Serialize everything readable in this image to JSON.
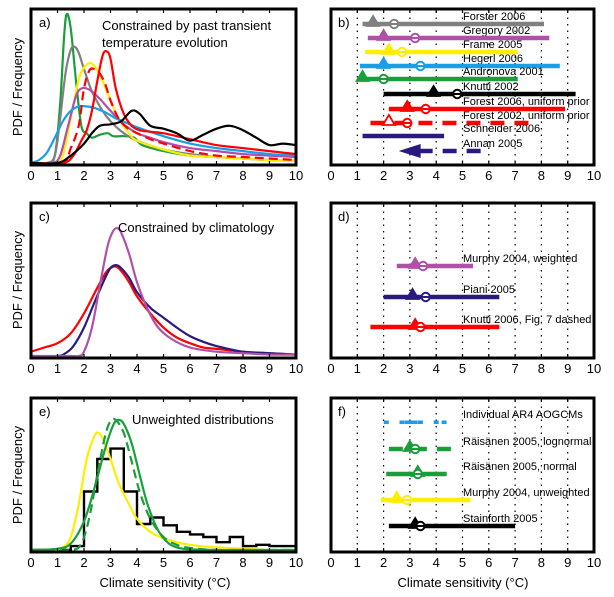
{
  "chart_data": [
    {
      "panel": "a",
      "type": "line",
      "label": "a)",
      "title": "Constrained by past transient temperature evolution",
      "title_lines": [
        "Constrained by past transient",
        "temperature evolution"
      ],
      "xlabel": "",
      "ylabel": "PDF / Frequency",
      "xlim": [
        0,
        10
      ],
      "ylim": [
        0,
        1
      ],
      "xticks": [
        "0",
        "1",
        "2",
        "3",
        "4",
        "5",
        "6",
        "7",
        "8",
        "9",
        "10"
      ],
      "series": [
        {
          "name": "Andronova 2001",
          "color": "#1a9e3c",
          "dash": false,
          "x": [
            0.6,
            0.9,
            1.1,
            1.25,
            1.35,
            1.5,
            1.7,
            1.9,
            2.1,
            2.3,
            2.6,
            2.9,
            3.1,
            3.5,
            3.9,
            4.2,
            5,
            6,
            7,
            8,
            9,
            10
          ],
          "y": [
            0,
            0.05,
            0.4,
            0.85,
            1.0,
            0.9,
            0.55,
            0.25,
            0.2,
            0.17,
            0.19,
            0.2,
            0.18,
            0.18,
            0.17,
            0.12,
            0.08,
            0.05,
            0.04,
            0.03,
            0.02,
            0.02
          ]
        },
        {
          "name": "Forster 2006",
          "color": "#808080",
          "dash": false,
          "x": [
            0.6,
            0.9,
            1.1,
            1.3,
            1.5,
            1.65,
            1.8,
            2.0,
            2.3,
            2.7,
            3.0,
            3.5,
            4,
            5,
            6,
            7,
            8,
            9,
            10
          ],
          "y": [
            0,
            0.05,
            0.3,
            0.6,
            0.76,
            0.78,
            0.74,
            0.63,
            0.48,
            0.35,
            0.28,
            0.2,
            0.15,
            0.09,
            0.06,
            0.04,
            0.03,
            0.02,
            0.02
          ]
        },
        {
          "name": "Frame 2005",
          "color": "#ffee00",
          "dash": false,
          "x": [
            0.9,
            1.2,
            1.5,
            1.8,
            2.0,
            2.2,
            2.4,
            2.7,
            3.0,
            3.3,
            3.7,
            4,
            5,
            6,
            7,
            8,
            9,
            10
          ],
          "y": [
            0,
            0.05,
            0.3,
            0.56,
            0.64,
            0.67,
            0.65,
            0.55,
            0.42,
            0.3,
            0.2,
            0.15,
            0.09,
            0.05,
            0.04,
            0.03,
            0.02,
            0.02
          ]
        },
        {
          "name": "Gregory 2002",
          "color": "#b050a8",
          "dash": false,
          "x": [
            0.8,
            1.1,
            1.4,
            1.7,
            1.9,
            2.1,
            2.3,
            2.6,
            3.0,
            3.5,
            4,
            4.5,
            5,
            6,
            7,
            8,
            9,
            10
          ],
          "y": [
            0,
            0.05,
            0.25,
            0.45,
            0.5,
            0.5,
            0.48,
            0.43,
            0.35,
            0.26,
            0.2,
            0.17,
            0.14,
            0.1,
            0.08,
            0.06,
            0.05,
            0.04
          ]
        },
        {
          "name": "Hegerl 2006",
          "color": "#1a9ee8",
          "dash": false,
          "x": [
            0,
            0.3,
            0.6,
            0.9,
            1.2,
            1.5,
            1.8,
            2.1,
            2.4,
            2.8,
            3.2,
            3.6,
            4,
            5,
            6,
            7,
            8,
            9,
            10
          ],
          "y": [
            0,
            0.02,
            0.07,
            0.17,
            0.28,
            0.35,
            0.38,
            0.38,
            0.37,
            0.34,
            0.3,
            0.27,
            0.24,
            0.18,
            0.13,
            0.1,
            0.08,
            0.06,
            0.05
          ]
        },
        {
          "name": "Forest 2006, uniform prior",
          "color": "#ff0000",
          "dash": false,
          "x": [
            1.2,
            1.6,
            1.9,
            2.1,
            2.3,
            2.5,
            2.7,
            2.85,
            3.0,
            3.2,
            3.5,
            3.8,
            4.1,
            4.5,
            5,
            5.5,
            6,
            7,
            8,
            9,
            9.5,
            10
          ],
          "y": [
            0,
            0.05,
            0.15,
            0.22,
            0.35,
            0.55,
            0.72,
            0.75,
            0.7,
            0.5,
            0.33,
            0.25,
            0.22,
            0.21,
            0.2,
            0.18,
            0.16,
            0.12,
            0.1,
            0.08,
            0.07,
            0.06
          ]
        },
        {
          "name": "Forest 2002, uniform prior",
          "color": "#ff0000",
          "dash": true,
          "x": [
            1.2,
            1.5,
            1.8,
            2.0,
            2.2,
            2.4,
            2.6,
            2.8,
            3.0,
            3.3,
            3.6,
            4,
            4.5,
            5,
            6,
            7,
            8,
            9,
            10
          ],
          "y": [
            0,
            0.1,
            0.25,
            0.5,
            0.62,
            0.63,
            0.6,
            0.53,
            0.42,
            0.3,
            0.24,
            0.2,
            0.16,
            0.13,
            0.08,
            0.05,
            0.04,
            0.03,
            0.02
          ]
        },
        {
          "name": "Knutti 2002",
          "color": "#000000",
          "dash": false,
          "x": [
            1.0,
            1.5,
            2.0,
            2.3,
            2.6,
            3.0,
            3.4,
            3.8,
            4.1,
            4.5,
            5,
            5.5,
            6,
            6.5,
            7,
            7.5,
            8,
            8.5,
            9,
            9.5,
            10
          ],
          "y": [
            0,
            0.05,
            0.13,
            0.2,
            0.25,
            0.26,
            0.28,
            0.35,
            0.33,
            0.25,
            0.23,
            0.2,
            0.15,
            0.19,
            0.23,
            0.25,
            0.22,
            0.17,
            0.12,
            0.13,
            0.12
          ]
        }
      ]
    },
    {
      "panel": "b",
      "type": "range",
      "label": "b)",
      "xlim": [
        0,
        10
      ],
      "xticks": [
        "0",
        "1",
        "2",
        "3",
        "4",
        "5",
        "6",
        "7",
        "8",
        "9",
        "10"
      ],
      "grid": "vertical-dotted",
      "rows": [
        {
          "name": "Forster 2006",
          "color": "#808080",
          "range": [
            1.2,
            8.1
          ],
          "mode": 1.6,
          "median": 2.4,
          "dash": false
        },
        {
          "name": "Gregory 2002",
          "color": "#b050a8",
          "range": [
            1.4,
            8.3
          ],
          "mode": 2.0,
          "median": 3.2,
          "dash": false
        },
        {
          "name": "Frame 2005",
          "color": "#ffee00",
          "range": [
            1.3,
            7.1
          ],
          "mode": 2.2,
          "median": 2.7,
          "dash": false
        },
        {
          "name": "Hegerl 2006",
          "color": "#1a9ee8",
          "range": [
            1.1,
            8.7
          ],
          "mode": 2.0,
          "median": 3.4,
          "dash": false
        },
        {
          "name": "Andronova 2001",
          "color": "#1a9e3c",
          "range": [
            1.0,
            7.1
          ],
          "mode": 1.2,
          "median": 2.0,
          "dash": false
        },
        {
          "name": "Knutti 2002",
          "color": "#000000",
          "range": [
            2.0,
            9.3
          ],
          "mode": 3.9,
          "median": 4.8,
          "dash": false
        },
        {
          "name": "Forest 2006, uniform prior",
          "color": "#ff0000",
          "range": [
            2.2,
            8.9
          ],
          "mode": 2.9,
          "median": 3.6,
          "dash": false
        },
        {
          "name": "Forest 2002, uniform prior",
          "color": "#ff0000",
          "range": [
            1.5,
            7.6
          ],
          "mode": 2.2,
          "median": 2.9,
          "dash": true,
          "open_markers": true
        },
        {
          "name": "Schneider 2006",
          "color": "#2a1a80",
          "range": [
            1.2,
            4.3
          ],
          "mode": null,
          "median": null,
          "dash": false
        },
        {
          "name": "Annan 2005",
          "color": "#2a1a80",
          "range": [
            2.8,
            5.8
          ],
          "mode": null,
          "median": null,
          "dash": true,
          "arrow_left": true
        }
      ]
    },
    {
      "panel": "c",
      "type": "line",
      "label": "c)",
      "title": "Constrained by climatology",
      "xlabel": "",
      "ylabel": "PDF / Frequency",
      "xlim": [
        0,
        10
      ],
      "ylim": [
        0,
        1
      ],
      "xticks": [
        "0",
        "1",
        "2",
        "3",
        "4",
        "5",
        "6",
        "7",
        "8",
        "9",
        "10"
      ],
      "series": [
        {
          "name": "Knutti 2006, Fig. 7 dashed",
          "color": "#ff0000",
          "dash": false,
          "x": [
            0,
            0.5,
            1.0,
            1.5,
            2.0,
            2.5,
            2.8,
            3.0,
            3.2,
            3.4,
            3.7,
            4.0,
            4.5,
            5,
            5.5,
            6,
            6.5,
            7,
            8,
            9,
            10
          ],
          "y": [
            0.03,
            0.06,
            0.09,
            0.16,
            0.3,
            0.48,
            0.58,
            0.62,
            0.63,
            0.6,
            0.52,
            0.42,
            0.3,
            0.2,
            0.13,
            0.09,
            0.06,
            0.05,
            0.03,
            0.02,
            0.01
          ]
        },
        {
          "name": "Piani 2005",
          "color": "#2a1a80",
          "dash": false,
          "x": [
            1.0,
            1.3,
            1.6,
            2.0,
            2.4,
            2.8,
            3.0,
            3.2,
            3.4,
            3.7,
            4.0,
            4.5,
            5,
            5.5,
            6,
            6.5,
            7,
            8,
            9,
            10
          ],
          "y": [
            0,
            0.02,
            0.07,
            0.2,
            0.38,
            0.55,
            0.62,
            0.64,
            0.62,
            0.55,
            0.45,
            0.34,
            0.27,
            0.2,
            0.14,
            0.1,
            0.07,
            0.03,
            0.02,
            0.01
          ]
        },
        {
          "name": "Murphy 2004, weighted",
          "color": "#b050a8",
          "dash": false,
          "x": [
            1.5,
            1.8,
            2.0,
            2.3,
            2.6,
            2.9,
            3.1,
            3.25,
            3.4,
            3.7,
            4.0,
            4.4,
            4.8,
            5.3,
            6,
            7,
            8,
            9,
            10
          ],
          "y": [
            0,
            0,
            0.03,
            0.2,
            0.5,
            0.78,
            0.88,
            0.9,
            0.87,
            0.72,
            0.52,
            0.33,
            0.2,
            0.12,
            0.06,
            0.03,
            0.02,
            0.01,
            0.01
          ]
        }
      ]
    },
    {
      "panel": "d",
      "type": "range",
      "label": "d)",
      "xlim": [
        0,
        10
      ],
      "xticks": [
        "0",
        "1",
        "2",
        "3",
        "4",
        "5",
        "6",
        "7",
        "8",
        "9",
        "10"
      ],
      "grid": "vertical-dotted",
      "rows": [
        {
          "name": "Murphy 2004, weighted",
          "color": "#b050a8",
          "range": [
            2.5,
            5.4
          ],
          "mode": 3.2,
          "median": 3.5,
          "dash": false
        },
        {
          "name": "Piani 2005",
          "color": "#2a1a80",
          "range": [
            2.0,
            6.4
          ],
          "mode": 3.1,
          "median": 3.6,
          "dash": false
        },
        {
          "name": "Knutti 2006, Fig. 7 dashed",
          "color": "#ff0000",
          "range": [
            1.5,
            6.4
          ],
          "mode": 3.2,
          "median": 3.4,
          "dash": false
        }
      ]
    },
    {
      "panel": "e",
      "type": "line",
      "label": "e)",
      "title": "Unweighted distributions",
      "xlabel": "Climate sensitivity (°C)",
      "ylabel": "PDF / Frequency",
      "xlim": [
        0,
        10
      ],
      "ylim": [
        0,
        1
      ],
      "xticks": [
        "0",
        "1",
        "2",
        "3",
        "4",
        "5",
        "6",
        "7",
        "8",
        "9",
        "10"
      ],
      "histogram": {
        "name": "Stainforth 2005",
        "color": "#000000",
        "bin_edges": [
          0,
          0.5,
          1,
          1.5,
          2,
          2.5,
          3,
          3.5,
          4,
          4.5,
          5,
          5.5,
          6,
          6.5,
          7,
          7.5,
          8,
          8.5,
          9,
          9.5,
          10
        ],
        "counts": [
          0,
          0,
          0,
          0.03,
          0.45,
          0.7,
          0.78,
          0.45,
          0.2,
          0.25,
          0.19,
          0.14,
          0.12,
          0.1,
          0.06,
          0.1,
          0.03,
          0.04,
          0.03,
          0.03
        ]
      },
      "series": [
        {
          "name": "Murphy 2004, unweighted",
          "color": "#ffee00",
          "dash": false,
          "x": [
            0.8,
            1.2,
            1.5,
            1.8,
            2.1,
            2.4,
            2.55,
            2.7,
            3.0,
            3.3,
            3.7,
            4.0,
            4.5,
            5,
            5.5,
            6,
            7,
            8,
            9,
            10
          ],
          "y": [
            0,
            0.02,
            0.1,
            0.35,
            0.7,
            0.88,
            0.9,
            0.86,
            0.7,
            0.52,
            0.35,
            0.24,
            0.14,
            0.09,
            0.06,
            0.04,
            0.02,
            0.01,
            0,
            0
          ]
        },
        {
          "name": "Räisänen 2005, normal",
          "color": "#1a9e3c",
          "dash": false,
          "x": [
            0,
            1,
            1.5,
            2.0,
            2.4,
            2.8,
            3.1,
            3.3,
            3.5,
            3.8,
            4.1,
            4.4,
            4.8,
            5.2,
            5.6,
            6,
            7,
            8,
            10
          ],
          "y": [
            0,
            0.01,
            0.05,
            0.22,
            0.48,
            0.78,
            0.96,
            1.0,
            0.97,
            0.82,
            0.58,
            0.35,
            0.15,
            0.05,
            0.015,
            0.005,
            0,
            0,
            0
          ]
        },
        {
          "name": "Räisänen 2005, lognormal",
          "color": "#1a9e3c",
          "dash": true,
          "x": [
            1.5,
            1.9,
            2.2,
            2.5,
            2.8,
            3.0,
            3.2,
            3.5,
            3.8,
            4.1,
            4.5,
            5,
            5.5,
            6,
            7,
            8,
            10
          ],
          "y": [
            0,
            0.05,
            0.25,
            0.58,
            0.88,
            0.99,
            1.0,
            0.9,
            0.68,
            0.45,
            0.24,
            0.1,
            0.04,
            0.015,
            0,
            0,
            0
          ]
        }
      ]
    },
    {
      "panel": "f",
      "type": "range",
      "label": "f)",
      "xlabel": "Climate sensitivity (°C)",
      "xlim": [
        0,
        10
      ],
      "xticks": [
        "0",
        "1",
        "2",
        "3",
        "4",
        "5",
        "6",
        "7",
        "8",
        "9",
        "10"
      ],
      "grid": "vertical-dotted",
      "rows": [
        {
          "name": "Individual AR4 AOGCMs",
          "color": "#1a9ee8",
          "points": [
            2.1,
            2.7,
            2.9,
            3.0,
            3.1,
            3.2,
            3.4,
            4.0,
            4.3
          ]
        },
        {
          "name": "Räisänen 2005, lognormal",
          "color": "#1a9e3c",
          "range": [
            2.2,
            4.6
          ],
          "mode": 3.0,
          "median": 3.2,
          "dash": true
        },
        {
          "name": "Räisänen 2005, normal",
          "color": "#1a9e3c",
          "range": [
            2.1,
            4.4
          ],
          "mode": 3.3,
          "median": 3.3,
          "dash": false
        },
        {
          "name": "Murphy 2004, unweighted",
          "color": "#ffee00",
          "range": [
            1.9,
            5.3
          ],
          "mode": 2.5,
          "median": 2.9,
          "dash": false
        },
        {
          "name": "Stainforth 2005",
          "color": "#000000",
          "range": [
            2.2,
            7.0
          ],
          "mode": 3.2,
          "median": 3.4,
          "dash": false
        }
      ]
    }
  ]
}
